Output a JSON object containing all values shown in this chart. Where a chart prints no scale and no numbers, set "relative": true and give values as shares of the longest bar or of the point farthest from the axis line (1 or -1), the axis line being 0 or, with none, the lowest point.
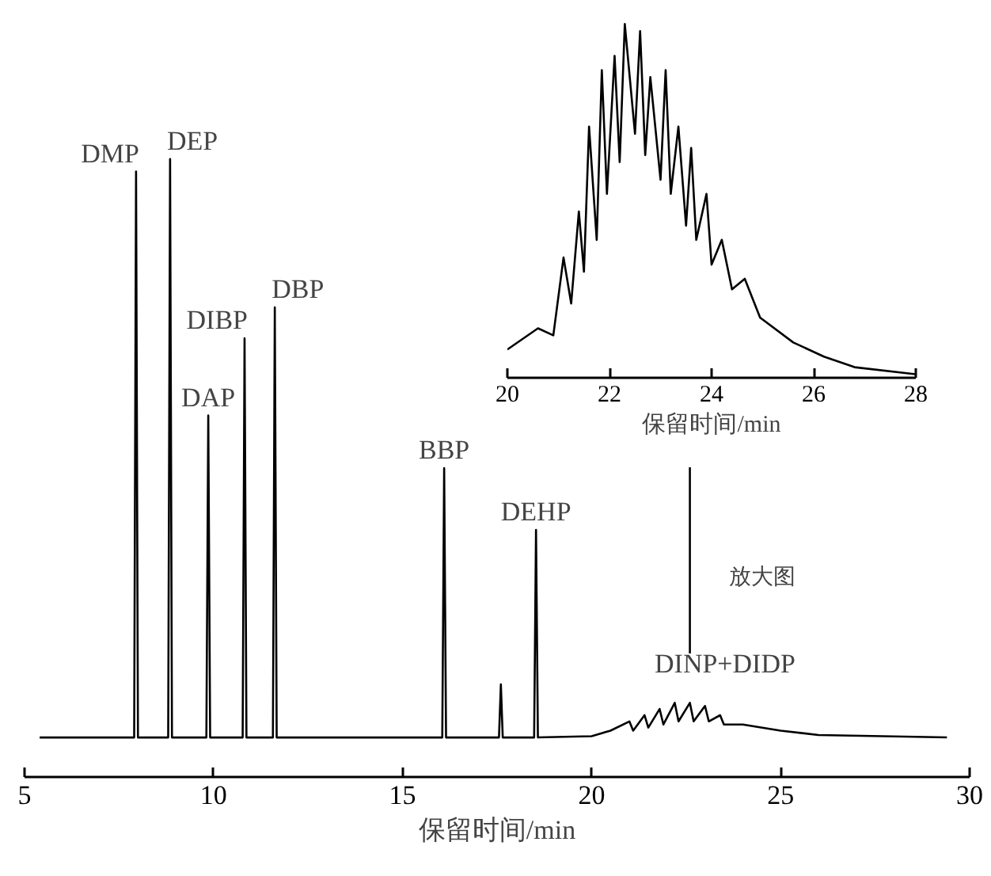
{
  "chart_data": [
    {
      "type": "line",
      "relative": true,
      "xlabel": "保留时间/min",
      "xlim": [
        5,
        30
      ],
      "xticks": [
        5,
        10,
        15,
        20,
        25,
        30
      ],
      "grid": false,
      "series": [
        {
          "color": "#000000",
          "x": [
            5.4,
            7.9,
            7.95,
            8.0,
            8.8,
            8.85,
            8.9,
            9.81,
            9.86,
            9.91,
            10.77,
            10.82,
            10.87,
            11.57,
            11.62,
            11.67,
            16.05,
            16.1,
            16.15,
            17.55,
            17.6,
            17.65,
            18.48,
            18.53,
            18.58,
            20.0,
            20.5,
            21.0,
            21.1,
            21.4,
            21.5,
            21.8,
            21.9,
            22.2,
            22.3,
            22.6,
            22.7,
            23.0,
            23.1,
            23.4,
            23.5,
            24.0,
            25.0,
            26.0,
            29.4
          ],
          "values": [
            0.064,
            0.064,
            0.98,
            0.064,
            0.064,
            1.0,
            0.064,
            0.064,
            0.585,
            0.064,
            0.064,
            0.71,
            0.064,
            0.064,
            0.76,
            0.064,
            0.064,
            0.5,
            0.064,
            0.064,
            0.15,
            0.064,
            0.064,
            0.4,
            0.064,
            0.066,
            0.075,
            0.09,
            0.075,
            0.1,
            0.08,
            0.11,
            0.085,
            0.12,
            0.09,
            0.12,
            0.09,
            0.115,
            0.09,
            0.1,
            0.085,
            0.085,
            0.075,
            0.068,
            0.064
          ]
        }
      ],
      "annotations": [
        {
          "text": "DMP",
          "x": 7.95,
          "y": 0.98
        },
        {
          "text": "DEP",
          "x": 8.85,
          "y": 1.0
        },
        {
          "text": "DAP",
          "x": 9.86,
          "y": 0.585
        },
        {
          "text": "DIBP",
          "x": 10.82,
          "y": 0.71
        },
        {
          "text": "DBP",
          "x": 11.62,
          "y": 0.76
        },
        {
          "text": "BBP",
          "x": 16.1,
          "y": 0.5
        },
        {
          "text": "DEHP",
          "x": 18.53,
          "y": 0.4
        },
        "DINP+DIDP",
        "放大图"
      ]
    },
    {
      "type": "line",
      "relative": true,
      "xlabel": "保留时间/min",
      "xlim": [
        20,
        28
      ],
      "xticks": [
        20,
        22,
        24,
        26,
        28
      ],
      "grid": false,
      "series": [
        {
          "color": "#000000",
          "x": [
            20.0,
            20.6,
            20.9,
            21.1,
            21.25,
            21.4,
            21.5,
            21.6,
            21.75,
            21.85,
            21.95,
            22.1,
            22.2,
            22.3,
            22.5,
            22.6,
            22.7,
            22.8,
            23.0,
            23.1,
            23.2,
            23.35,
            23.5,
            23.6,
            23.7,
            23.9,
            24.0,
            24.2,
            24.4,
            24.65,
            24.95,
            25.6,
            26.2,
            26.8,
            28.0
          ],
          "values": [
            0.08,
            0.14,
            0.12,
            0.34,
            0.21,
            0.47,
            0.3,
            0.71,
            0.39,
            0.87,
            0.52,
            0.91,
            0.61,
            1.0,
            0.69,
            0.98,
            0.63,
            0.85,
            0.56,
            0.87,
            0.52,
            0.71,
            0.43,
            0.65,
            0.39,
            0.52,
            0.32,
            0.39,
            0.25,
            0.28,
            0.17,
            0.1,
            0.06,
            0.03,
            0.01
          ]
        }
      ]
    }
  ]
}
